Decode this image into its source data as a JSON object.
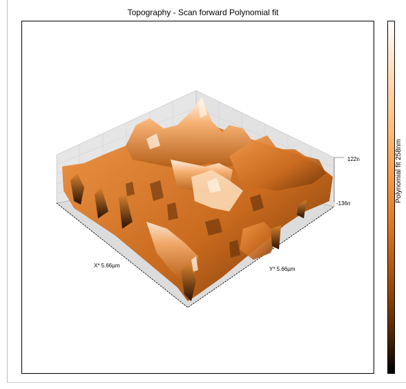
{
  "window": {
    "title": "Topography - Scan forward   Polynomial fit"
  },
  "plot": {
    "x_axis_label": "X* 5.66µm",
    "y_axis_label": "Y* 5.66µm",
    "z_max_label": "122n",
    "z_min_label": "-136n"
  },
  "colorbar": {
    "label": "Polynomial fit 258nm",
    "colors": [
      "#ffffff",
      "#ffc48a",
      "#d4741f",
      "#000000"
    ]
  }
}
